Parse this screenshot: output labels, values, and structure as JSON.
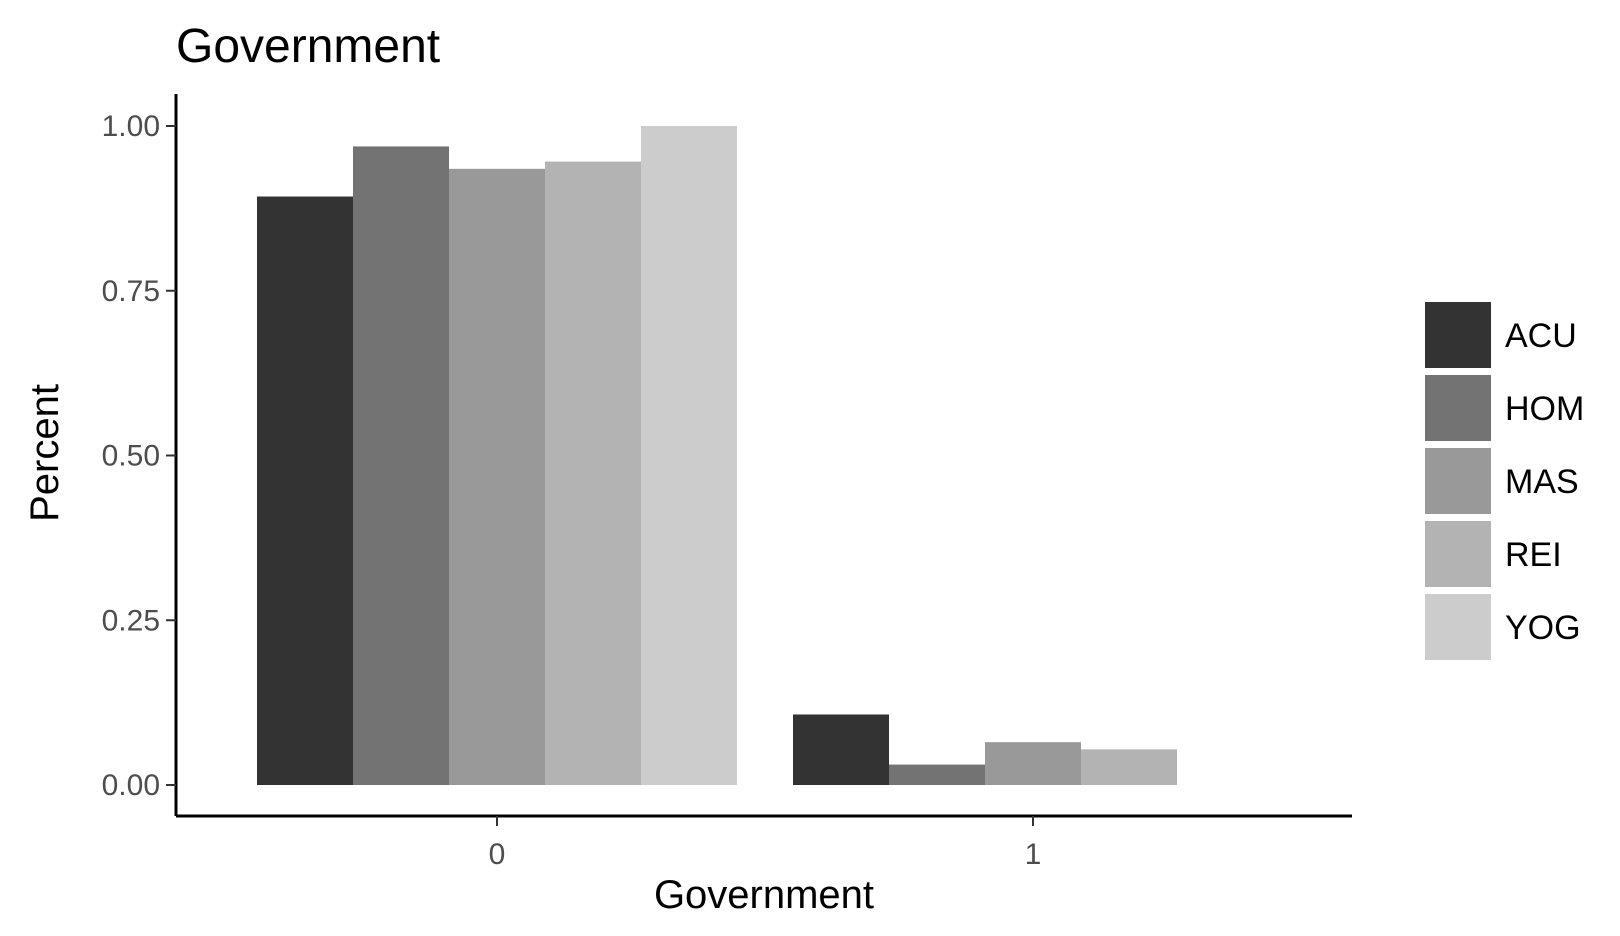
{
  "chart_data": {
    "type": "bar",
    "title": "Government",
    "xlabel": "Government",
    "ylabel": "Percent",
    "categories": [
      "0",
      "1"
    ],
    "ylim": [
      0,
      1.05
    ],
    "yticks": [
      "0.00",
      "0.25",
      "0.50",
      "0.75",
      "1.00"
    ],
    "grid": false,
    "legend_position": "right",
    "series": [
      {
        "name": "ACU",
        "color": "#333333",
        "values": [
          0.893,
          0.107
        ]
      },
      {
        "name": "HOM",
        "color": "#737373",
        "values": [
          0.969,
          0.031
        ]
      },
      {
        "name": "MAS",
        "color": "#999999",
        "values": [
          0.935,
          0.065
        ]
      },
      {
        "name": "REI",
        "color": "#b3b3b3",
        "values": [
          0.946,
          0.054
        ]
      },
      {
        "name": "YOG",
        "color": "#cccccc",
        "values": [
          1.0,
          0.0
        ]
      }
    ]
  }
}
